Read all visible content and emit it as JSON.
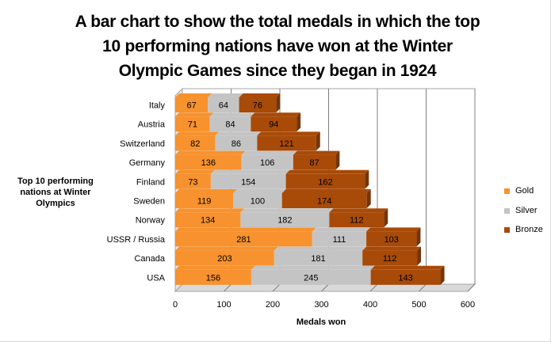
{
  "chart_data": {
    "type": "bar",
    "orientation": "horizontal",
    "stacked": true,
    "title": "A bar chart to show the total medals in which the top 10 performing nations have won at the Winter Olympic Games since they began in 1924",
    "title_lines": [
      "A bar chart to show the total medals in which the top",
      "10 performing nations have won at the Winter",
      "Olympic Games since they began in 1924"
    ],
    "xlabel": "Medals won",
    "ylabel": "Top 10 performing nations at Winter Olympics",
    "ylabel_lines": [
      "Top 10 performing",
      "nations at Winter",
      "Olympics"
    ],
    "xlim": [
      0,
      600
    ],
    "xticks": [
      0,
      100,
      200,
      300,
      400,
      500,
      600
    ],
    "grid": true,
    "legend_position": "right",
    "categories": [
      "Italy",
      "Austria",
      "Switzerland",
      "Germany",
      "Finland",
      "Sweden",
      "Norway",
      "USSR / Russia",
      "Canada",
      "USA"
    ],
    "series": [
      {
        "name": "Gold",
        "color": "#F7922E",
        "values": [
          67,
          71,
          82,
          136,
          73,
          119,
          134,
          281,
          203,
          156
        ]
      },
      {
        "name": "Silver",
        "color": "#C4C4C4",
        "values": [
          64,
          84,
          86,
          106,
          154,
          100,
          182,
          111,
          181,
          245
        ]
      },
      {
        "name": "Bronze",
        "color": "#A84A08",
        "values": [
          76,
          94,
          121,
          87,
          162,
          174,
          112,
          103,
          112,
          143
        ]
      }
    ]
  }
}
